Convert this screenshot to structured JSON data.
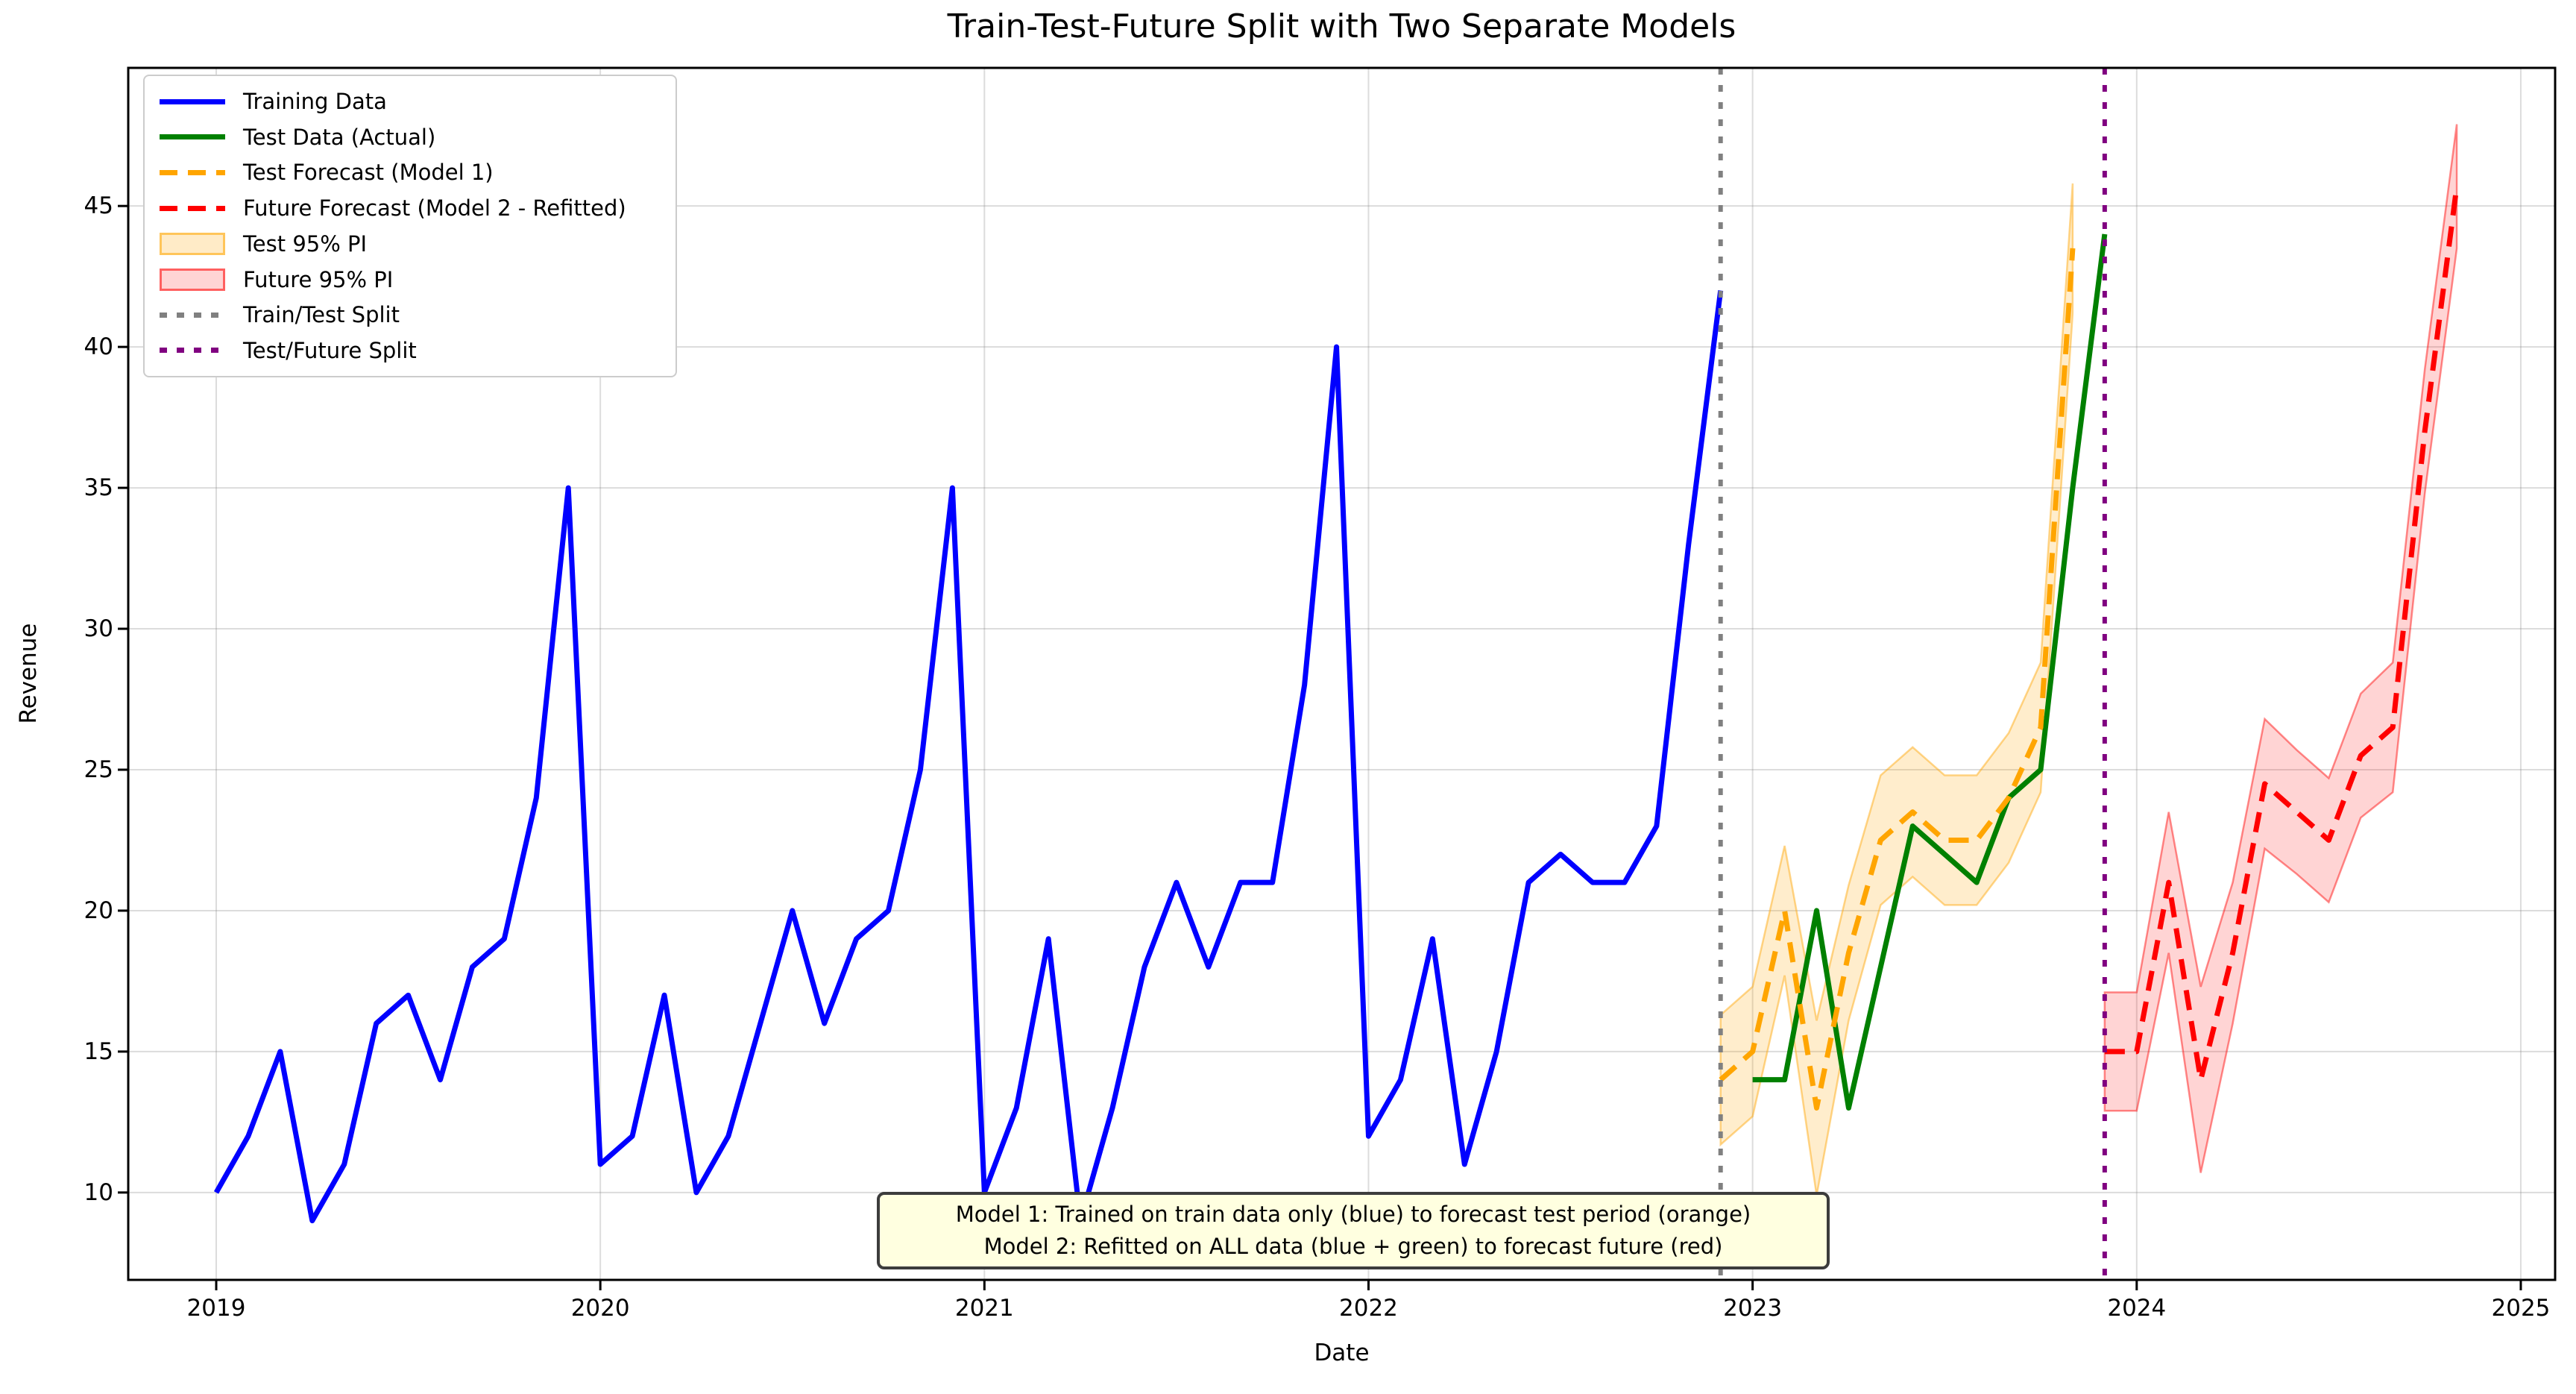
{
  "chart_data": {
    "type": "line",
    "title": "Train-Test-Future Split with Two Separate Models",
    "xlabel": "Date",
    "ylabel": "Revenue",
    "x_tick_labels": [
      "2019",
      "2020",
      "2021",
      "2022",
      "2023",
      "2024",
      "2025"
    ],
    "x_tick_months": [
      0,
      12,
      24,
      36,
      48,
      60,
      72
    ],
    "y_ticks": [
      10,
      15,
      20,
      25,
      30,
      35,
      40,
      45
    ],
    "ylim": [
      6.9,
      49.9
    ],
    "xlim_months": [
      -2.75,
      73.1
    ],
    "grid": true,
    "legend_position": "upper left",
    "series": [
      {
        "name": "Training Data",
        "color": "#0000FF",
        "style": "solid",
        "start_date": "2019-01",
        "start_month": 0,
        "values": [
          10,
          12,
          15,
          9,
          11,
          16,
          17,
          14,
          18,
          19,
          24,
          35,
          11,
          12,
          17,
          10,
          12,
          16,
          20,
          16,
          19,
          20,
          25,
          35,
          10,
          13,
          19,
          9,
          13,
          18,
          21,
          18,
          21,
          21,
          28,
          40,
          12,
          14,
          19,
          11,
          15,
          21,
          22,
          21,
          21,
          23,
          33,
          42
        ]
      },
      {
        "name": "Test Data (Actual)",
        "color": "#008000",
        "style": "solid",
        "start_date": "2023-01",
        "start_month": 48,
        "values": [
          14,
          14,
          20,
          13,
          18,
          23,
          22,
          21,
          24,
          25,
          35,
          44
        ]
      },
      {
        "name": "Test Forecast (Model 1)",
        "color": "#FFA500",
        "style": "dashed",
        "start_date": "2022-12",
        "start_month": 47,
        "values": [
          14,
          15,
          20,
          13,
          18.5,
          22.5,
          23.5,
          22.5,
          22.5,
          24,
          26.5,
          43.5
        ]
      },
      {
        "name": "Future Forecast (Model 2 - Refitted)",
        "color": "#FF0000",
        "style": "dashed",
        "start_date": "2023-12",
        "start_month": 59,
        "values": [
          15,
          15,
          21,
          14,
          18.5,
          24.5,
          23.5,
          22.5,
          25.5,
          26.5,
          37,
          45.7
        ]
      }
    ],
    "bands": [
      {
        "name": "Test 95% PI",
        "color": "#FFA500",
        "fill_opacity": 0.2,
        "start_month": 47,
        "lower": [
          11.7,
          12.7,
          17.7,
          9.9,
          16.1,
          20.2,
          21.2,
          20.2,
          20.2,
          21.7,
          24.2,
          41.2
        ],
        "upper": [
          16.3,
          17.3,
          22.3,
          16.1,
          20.9,
          24.8,
          25.8,
          24.8,
          24.8,
          26.3,
          28.8,
          45.8
        ]
      },
      {
        "name": "Future 95% PI",
        "color": "#FF0000",
        "fill_opacity": 0.17,
        "start_month": 59,
        "lower": [
          12.9,
          12.9,
          18.5,
          10.7,
          16.0,
          22.2,
          21.3,
          20.3,
          23.3,
          24.2,
          34.8,
          43.5
        ],
        "upper": [
          17.1,
          17.1,
          23.5,
          17.3,
          21.0,
          26.8,
          25.7,
          24.7,
          27.7,
          28.8,
          39.2,
          47.9
        ]
      }
    ],
    "vlines": [
      {
        "name": "Train/Test Split",
        "color": "#808080",
        "month": 47,
        "date": "2022-12"
      },
      {
        "name": "Test/Future Split",
        "color": "#800080",
        "month": 59,
        "date": "2023-12"
      }
    ]
  },
  "legend": {
    "items": [
      {
        "label": "Training Data",
        "swatch": "solid",
        "color": "#0000FF"
      },
      {
        "label": "Test Data (Actual)",
        "swatch": "solid",
        "color": "#008000"
      },
      {
        "label": "Test Forecast (Model 1)",
        "swatch": "dashed",
        "color": "#FFA500"
      },
      {
        "label": "Future Forecast (Model 2 - Refitted)",
        "swatch": "dashed",
        "color": "#FF0000"
      },
      {
        "label": "Test 95% PI",
        "swatch": "patch",
        "color": "#FFA500",
        "fill_opacity": 0.22
      },
      {
        "label": "Future 95% PI",
        "swatch": "patch",
        "color": "#FF0000",
        "fill_opacity": 0.17
      },
      {
        "label": "Train/Test Split",
        "swatch": "dotted",
        "color": "#808080"
      },
      {
        "label": "Test/Future Split",
        "swatch": "dotted",
        "color": "#800080"
      }
    ]
  },
  "annotation": {
    "line1": "Model 1: Trained on train data only (blue) to forecast test period (orange)",
    "line2": "Model 2: Refitted on ALL data (blue + green) to forecast future (red)"
  }
}
